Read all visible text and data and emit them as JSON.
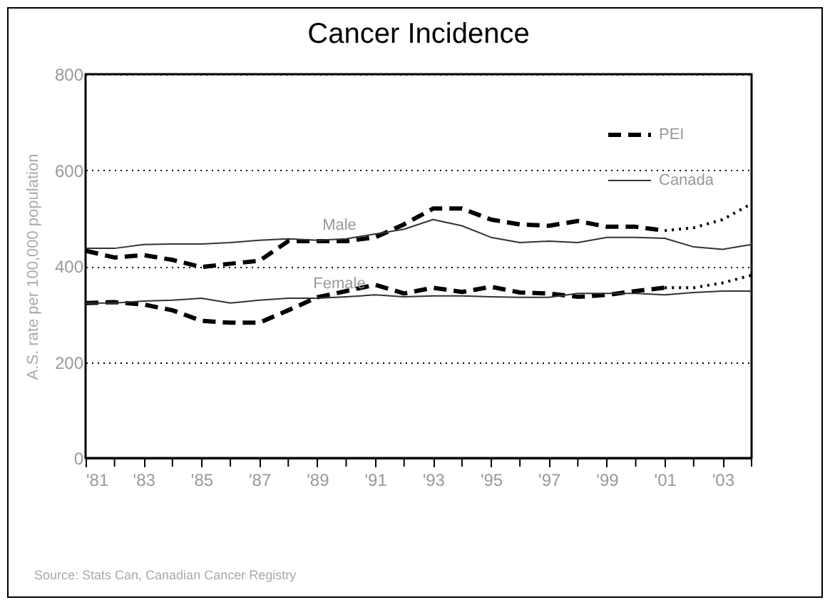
{
  "chart_data": {
    "type": "line",
    "title": "Cancer Incidence",
    "ylabel": "A.S. rate per 100,000 population",
    "x": [
      1981,
      1982,
      1983,
      1984,
      1985,
      1986,
      1987,
      1988,
      1989,
      1990,
      1991,
      1992,
      1993,
      1994,
      1995,
      1996,
      1997,
      1998,
      1999,
      2000,
      2001,
      2002,
      2003,
      2004
    ],
    "series": [
      {
        "name": "PEI",
        "color": "#000000",
        "line_style": "dashed",
        "x": [
          1981,
          1982,
          1983,
          1984,
          1985,
          1986,
          1987,
          1988,
          1989,
          1990,
          1991,
          1992,
          1993,
          1994,
          1995,
          1996,
          1997,
          1998,
          1999,
          2000,
          2001
        ],
        "values": [
          432,
          418,
          423,
          413,
          398,
          405,
          411,
          452,
          452,
          452,
          460,
          487,
          520,
          520,
          497,
          487,
          484,
          494,
          482,
          482,
          474
        ]
      },
      {
        "color": "#000000",
        "line_style": "dotted",
        "x": [
          2001,
          2002,
          2003,
          2004
        ],
        "values": [
          474,
          480,
          497,
          530
        ]
      },
      {
        "name": "Canada",
        "color": "#333333",
        "line_style": "solid",
        "values": [
          437,
          437,
          445,
          446,
          446,
          449,
          454,
          457,
          454,
          457,
          467,
          477,
          497,
          484,
          460,
          449,
          452,
          449,
          460,
          460,
          458,
          440,
          435,
          445
        ]
      },
      {
        "color": "#000000",
        "line_style": "dashed",
        "x": [
          1981,
          1982,
          1983,
          1984,
          1985,
          1986,
          1987,
          1988,
          1989,
          1990,
          1991,
          1992,
          1993,
          1994,
          1995,
          1996,
          1997,
          1998,
          1999,
          2000,
          2001
        ],
        "values": [
          323,
          325,
          320,
          308,
          286,
          282,
          282,
          308,
          335,
          348,
          361,
          343,
          355,
          346,
          357,
          345,
          343,
          336,
          340,
          348,
          355
        ]
      },
      {
        "color": "#000000",
        "line_style": "dotted",
        "x": [
          2001,
          2002,
          2003,
          2004
        ],
        "values": [
          355,
          355,
          365,
          381
        ]
      },
      {
        "color": "#333333",
        "line_style": "solid",
        "values": [
          323,
          323,
          327,
          329,
          333,
          323,
          329,
          333,
          333,
          336,
          340,
          336,
          338,
          338,
          336,
          335,
          335,
          343,
          343,
          343,
          340,
          345,
          348,
          348
        ]
      }
    ],
    "xlim": [
      1981,
      2004
    ],
    "xticks": [
      {
        "value": 1981,
        "label": "'81"
      },
      {
        "value": 1982,
        "label": null
      },
      {
        "value": 1983,
        "label": "'83"
      },
      {
        "value": 1984,
        "label": null
      },
      {
        "value": 1985,
        "label": "'85"
      },
      {
        "value": 1986,
        "label": null
      },
      {
        "value": 1987,
        "label": "'87"
      },
      {
        "value": 1988,
        "label": null
      },
      {
        "value": 1989,
        "label": "'89"
      },
      {
        "value": 1990,
        "label": null
      },
      {
        "value": 1991,
        "label": "'91"
      },
      {
        "value": 1992,
        "label": null
      },
      {
        "value": 1993,
        "label": "'93"
      },
      {
        "value": 1994,
        "label": null
      },
      {
        "value": 1995,
        "label": "'95"
      },
      {
        "value": 1996,
        "label": null
      },
      {
        "value": 1997,
        "label": "'97"
      },
      {
        "value": 1998,
        "label": null
      },
      {
        "value": 1999,
        "label": "'99"
      },
      {
        "value": 2000,
        "label": null
      },
      {
        "value": 2001,
        "label": "'01"
      },
      {
        "value": 2002,
        "label": null
      },
      {
        "value": 2003,
        "label": "'03"
      },
      {
        "value": 2004,
        "label": null
      }
    ],
    "ylim": [
      0,
      800
    ],
    "yticks": [
      0,
      200,
      400,
      600,
      800
    ],
    "grid": "y",
    "legend": "top right",
    "annotations": [
      "Male",
      "Female",
      "Source: Stats Can, Canadian Cancer Registry"
    ]
  }
}
